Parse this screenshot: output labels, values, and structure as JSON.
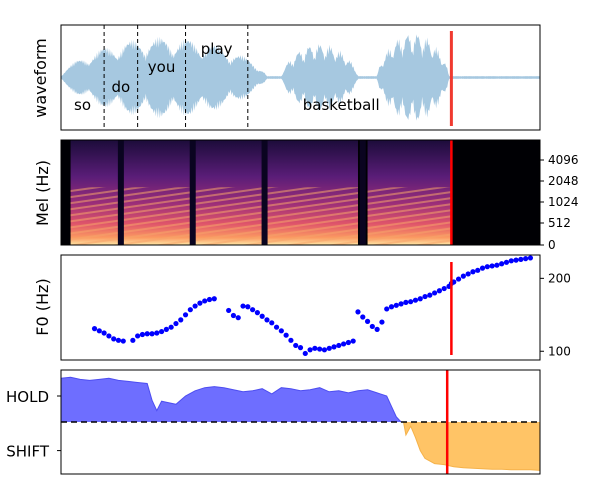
{
  "chart_data": [
    {
      "type": "area",
      "panel": "waveform",
      "ylabel": "waveform",
      "words": [
        {
          "label": "so",
          "start": 0.0,
          "end": 0.09
        },
        {
          "label": "do",
          "start": 0.09,
          "end": 0.16
        },
        {
          "label": "you",
          "start": 0.16,
          "end": 0.26
        },
        {
          "label": "play",
          "start": 0.26,
          "end": 0.39
        },
        {
          "label": "basketball",
          "start": 0.48,
          "end": 0.82
        }
      ],
      "word_boundaries": [
        0.09,
        0.16,
        0.26,
        0.39
      ],
      "speech_segments": [
        {
          "start": 0.0,
          "end": 0.43,
          "peak": 0.85
        },
        {
          "start": 0.46,
          "end": 0.62,
          "peak": 0.72
        },
        {
          "start": 0.66,
          "end": 0.81,
          "peak": 0.95
        }
      ],
      "colors": {
        "wave": "#a6c8e0",
        "boundary": "#000000",
        "cursor": "#f03a2f"
      },
      "cursor_x": 0.815,
      "xlim": [
        0,
        1
      ],
      "ylim": [
        -1,
        1
      ]
    },
    {
      "type": "heatmap",
      "panel": "mel-spectrogram",
      "ylabel": "Mel (Hz)",
      "yticks": [
        "0",
        "512",
        "1024",
        "2048",
        "4096"
      ],
      "cursor_x": 0.815,
      "colors": {
        "cursor": "#ff0000",
        "palette": "magma"
      }
    },
    {
      "type": "scatter",
      "panel": "pitch",
      "ylabel": "F0 (Hz)",
      "yticks": [
        100,
        200
      ],
      "ylim": [
        88,
        232
      ],
      "xlim": [
        0,
        1
      ],
      "colors": {
        "points": "#0000ff",
        "cursor": "#ff0000"
      },
      "cursor_x": 0.815,
      "x": [
        0.07,
        0.08,
        0.09,
        0.1,
        0.11,
        0.12,
        0.13,
        0.15,
        0.16,
        0.17,
        0.18,
        0.19,
        0.2,
        0.21,
        0.22,
        0.23,
        0.24,
        0.25,
        0.26,
        0.27,
        0.28,
        0.29,
        0.3,
        0.31,
        0.32,
        0.35,
        0.36,
        0.37,
        0.38,
        0.39,
        0.4,
        0.41,
        0.42,
        0.43,
        0.44,
        0.45,
        0.46,
        0.47,
        0.48,
        0.49,
        0.5,
        0.51,
        0.52,
        0.53,
        0.54,
        0.55,
        0.56,
        0.57,
        0.58,
        0.59,
        0.6,
        0.61,
        0.62,
        0.63,
        0.64,
        0.65,
        0.66,
        0.67,
        0.68,
        0.69,
        0.7,
        0.71,
        0.72,
        0.73,
        0.74,
        0.75,
        0.76,
        0.77,
        0.78,
        0.79,
        0.8,
        0.81,
        0.815,
        0.82,
        0.83,
        0.84,
        0.85,
        0.86,
        0.87,
        0.88,
        0.89,
        0.9,
        0.91,
        0.92,
        0.93,
        0.94,
        0.95,
        0.96,
        0.97,
        0.98
      ],
      "y": [
        131,
        128,
        125,
        121,
        117,
        115,
        114,
        115,
        121,
        123,
        124,
        124,
        125,
        127,
        130,
        133,
        138,
        143,
        150,
        157,
        162,
        166,
        169,
        171,
        172,
        156,
        149,
        146,
        162,
        161,
        157,
        153,
        148,
        143,
        139,
        133,
        128,
        122,
        115,
        108,
        105,
        97,
        102,
        104,
        103,
        102,
        104,
        106,
        108,
        110,
        112,
        114,
        154,
        147,
        141,
        134,
        130,
        140,
        158,
        161,
        163,
        165,
        167,
        168,
        170,
        172,
        175,
        177,
        180,
        183,
        186,
        189,
        193,
        195,
        199,
        203,
        206,
        209,
        211,
        214,
        216,
        217,
        218,
        220,
        222,
        224,
        225,
        226,
        227,
        228
      ],
      "y_visible": [
        131,
        128,
        125,
        121,
        117,
        115,
        114,
        115,
        121,
        123,
        124,
        124,
        125,
        127,
        130,
        133,
        138,
        143,
        150,
        157,
        162,
        166,
        169,
        171,
        172,
        156,
        149,
        146,
        162,
        161,
        157,
        153,
        148,
        143,
        139,
        133,
        128,
        122,
        115,
        108,
        105,
        97,
        102,
        104,
        103,
        102,
        104,
        106,
        108,
        110,
        112,
        114,
        154,
        147,
        141,
        134,
        130,
        140,
        158,
        161,
        163,
        165,
        167,
        168,
        170,
        172,
        175,
        177,
        180,
        183,
        186,
        189,
        193,
        195,
        199,
        203,
        206,
        209,
        211,
        214,
        216,
        217,
        218,
        220,
        222,
        224,
        225,
        226,
        227,
        228
      ]
    },
    {
      "type": "area",
      "panel": "turn-taking",
      "yticks": [
        "HOLD",
        "SHIFT"
      ],
      "ylim": [
        -1,
        1
      ],
      "xlim": [
        0,
        1
      ],
      "cursor_x": 0.8,
      "colors": {
        "hold": "#6666ff",
        "shift": "#ffc466",
        "baseline": "#000000",
        "cursor": "#ff0000"
      },
      "series": [
        {
          "name": "HOLD",
          "x": [
            0.0,
            0.02,
            0.04,
            0.06,
            0.08,
            0.1,
            0.12,
            0.14,
            0.16,
            0.18,
            0.19,
            0.2,
            0.21,
            0.22,
            0.24,
            0.26,
            0.28,
            0.3,
            0.32,
            0.34,
            0.36,
            0.38,
            0.4,
            0.42,
            0.44,
            0.46,
            0.48,
            0.5,
            0.52,
            0.54,
            0.56,
            0.58,
            0.6,
            0.62,
            0.64,
            0.66,
            0.68,
            0.69,
            0.7,
            0.71
          ],
          "values": [
            0.84,
            0.86,
            0.82,
            0.8,
            0.82,
            0.84,
            0.8,
            0.78,
            0.76,
            0.74,
            0.42,
            0.22,
            0.4,
            0.38,
            0.34,
            0.5,
            0.6,
            0.66,
            0.68,
            0.66,
            0.62,
            0.58,
            0.6,
            0.64,
            0.54,
            0.66,
            0.64,
            0.6,
            0.62,
            0.66,
            0.58,
            0.6,
            0.56,
            0.6,
            0.62,
            0.56,
            0.5,
            0.3,
            0.1,
            0.0
          ]
        },
        {
          "name": "SHIFT",
          "x": [
            0.715,
            0.72,
            0.73,
            0.74,
            0.75,
            0.76,
            0.78,
            0.8,
            0.82,
            0.84,
            0.86,
            0.88,
            0.9,
            0.92,
            0.94,
            0.96,
            0.98,
            1.0
          ],
          "values": [
            0.0,
            -0.25,
            -0.08,
            -0.3,
            -0.55,
            -0.7,
            -0.8,
            -0.82,
            -0.86,
            -0.88,
            -0.89,
            -0.9,
            -0.91,
            -0.91,
            -0.92,
            -0.92,
            -0.92,
            -0.93
          ]
        }
      ]
    }
  ]
}
